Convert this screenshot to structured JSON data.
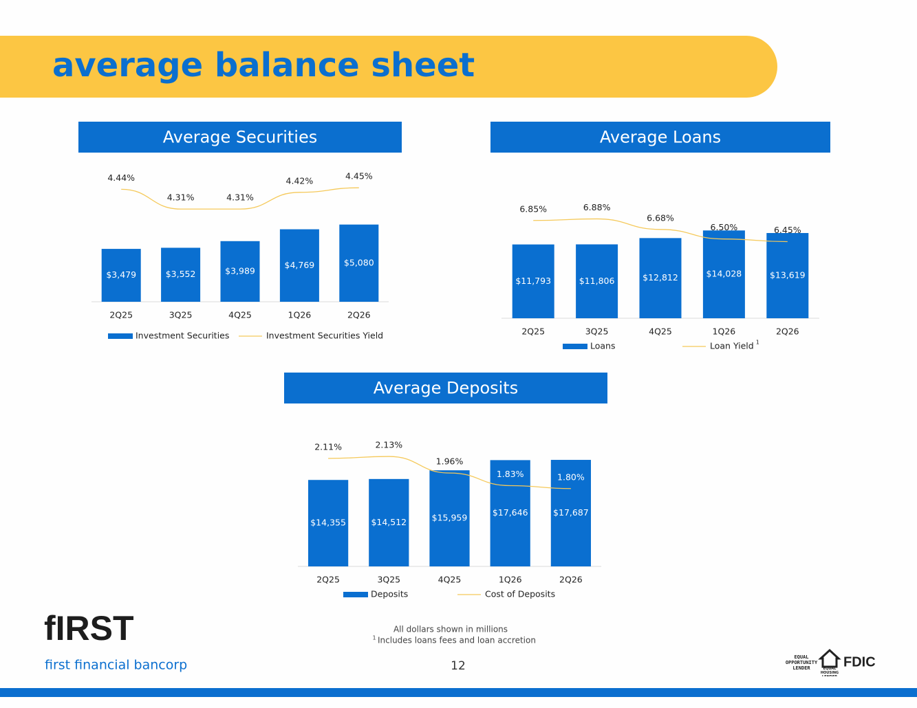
{
  "header": {
    "title": "average balance sheet"
  },
  "chart_data": [
    {
      "type": "bar",
      "title": "Average Securities",
      "categories": [
        "2Q25",
        "3Q25",
        "4Q25",
        "1Q26",
        "2Q26"
      ],
      "series": [
        {
          "name": "Investment Securities",
          "color": "#0a6fd0",
          "values": [
            3479,
            3552,
            3989,
            4769,
            5080
          ],
          "value_labels": [
            "$3,479",
            "$3,552",
            "$3,989",
            "$4,769",
            "$5,080"
          ]
        },
        {
          "name": "Investment Securities Yield",
          "type": "line",
          "axis": "y2",
          "color": "#f5c95a",
          "values": [
            4.44,
            4.31,
            4.31,
            4.42,
            4.45
          ],
          "value_labels": [
            "4.44%",
            "4.31%",
            "4.31%",
            "4.42%",
            "4.45%"
          ]
        }
      ],
      "ylim": [
        0,
        9000
      ],
      "y2lim": [
        3.7,
        4.6
      ]
    },
    {
      "type": "bar",
      "title": "Average Loans",
      "categories": [
        "2Q25",
        "3Q25",
        "4Q25",
        "1Q26",
        "2Q26"
      ],
      "series": [
        {
          "name": "Loans",
          "color": "#0a6fd0",
          "values": [
            11793,
            11806,
            12812,
            14028,
            13619
          ],
          "value_labels": [
            "$11,793",
            "$11,806",
            "$12,812",
            "$14,028",
            "$13,619"
          ]
        },
        {
          "name": "Loan Yield",
          "type": "line",
          "axis": "y2",
          "color": "#f5c95a",
          "values": [
            6.85,
            6.88,
            6.68,
            6.5,
            6.45
          ],
          "value_labels": [
            "6.85%",
            "6.88%",
            "6.68%",
            "6.50%",
            "6.45%"
          ]
        }
      ],
      "legend_note": "1",
      "ylim": [
        0,
        19000
      ],
      "y2lim": [
        5,
        7.25
      ]
    },
    {
      "type": "bar",
      "title": "Average Deposits",
      "categories": [
        "2Q25",
        "3Q25",
        "4Q25",
        "1Q26",
        "2Q26"
      ],
      "series": [
        {
          "name": "Deposits",
          "color": "#0a6fd0",
          "values": [
            14355,
            14512,
            15959,
            17646,
            17687
          ],
          "value_labels": [
            "$14,355",
            "$14,512",
            "$15,959",
            "$17,646",
            "$17,687"
          ]
        },
        {
          "name": "Cost of Deposits",
          "type": "line",
          "axis": "y2",
          "color": "#f5c95a",
          "values": [
            2.11,
            2.13,
            1.96,
            1.83,
            1.8
          ],
          "value_labels": [
            "2.11%",
            "2.13%",
            "1.96%",
            "1.83%",
            "1.80%"
          ]
        }
      ],
      "ylim": [
        0,
        21000
      ],
      "y2lim": [
        1.0,
        2.3
      ]
    }
  ],
  "footer": {
    "logo": "fIRST",
    "company": "first financial bancorp",
    "note": "All dollars shown in millions",
    "note_marker": "1",
    "footnote": "Includes loans fees and loan accretion",
    "page": "12",
    "badge1": "EQUAL OPPORTUNITY LENDER",
    "badge2": "EQUAL HOUSING LENDER",
    "badge3": "FDIC"
  }
}
